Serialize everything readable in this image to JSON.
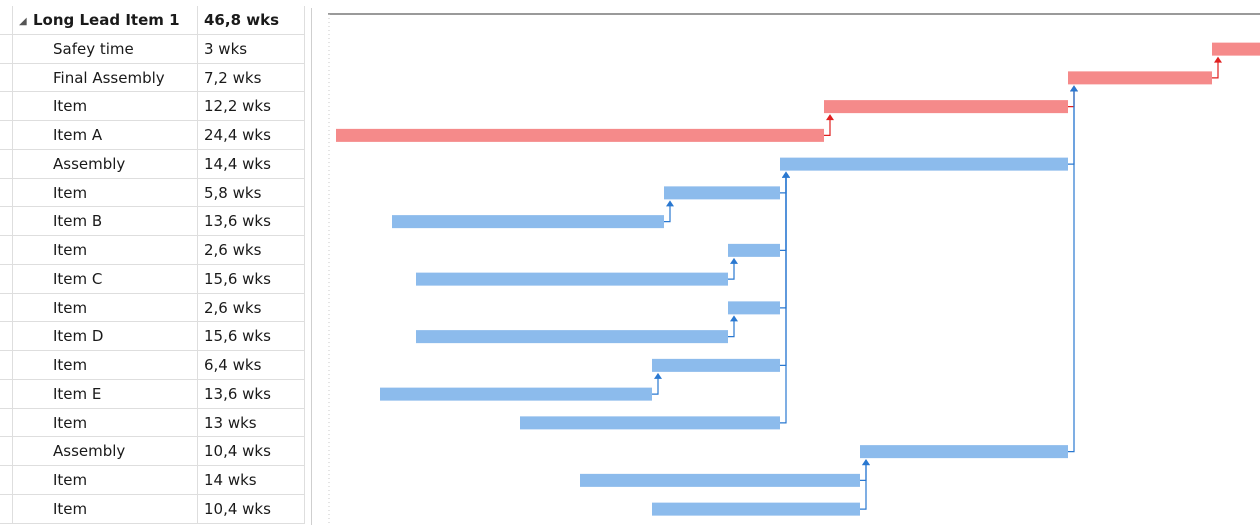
{
  "summary": {
    "name": "Long Lead Item 1",
    "duration": "46,8 wks"
  },
  "tasks": [
    {
      "name": "Safey time",
      "duration": "3 wks",
      "start": 44.5,
      "weeks": 3,
      "critical": true
    },
    {
      "name": "Final Assembly",
      "duration": "7,2 wks",
      "start": 37.3,
      "weeks": 7.2,
      "critical": true
    },
    {
      "name": "Item",
      "duration": "12,2 wks",
      "start": 25.1,
      "weeks": 12.2,
      "critical": true
    },
    {
      "name": "Item A",
      "duration": "24,4 wks",
      "start": 0.7,
      "weeks": 24.4,
      "critical": true
    },
    {
      "name": "Assembly",
      "duration": "14,4 wks",
      "start": 22.9,
      "weeks": 14.4,
      "critical": false
    },
    {
      "name": "Item",
      "duration": "5,8 wks",
      "start": 17.1,
      "weeks": 5.8,
      "critical": false
    },
    {
      "name": "Item B",
      "duration": "13,6 wks",
      "start": 3.5,
      "weeks": 13.6,
      "critical": false
    },
    {
      "name": "Item",
      "duration": "2,6 wks",
      "start": 20.3,
      "weeks": 2.6,
      "critical": false
    },
    {
      "name": "Item C",
      "duration": "15,6 wks",
      "start": 4.7,
      "weeks": 15.6,
      "critical": false
    },
    {
      "name": "Item",
      "duration": "2,6 wks",
      "start": 20.3,
      "weeks": 2.6,
      "critical": false
    },
    {
      "name": "Item D",
      "duration": "15,6 wks",
      "start": 4.7,
      "weeks": 15.6,
      "critical": false
    },
    {
      "name": "Item",
      "duration": "6,4 wks",
      "start": 16.5,
      "weeks": 6.4,
      "critical": false
    },
    {
      "name": "Item E",
      "duration": "13,6 wks",
      "start": 2.9,
      "weeks": 13.6,
      "critical": false
    },
    {
      "name": "Item",
      "duration": "13 wks",
      "start": 9.9,
      "weeks": 13,
      "critical": false
    },
    {
      "name": "Assembly",
      "duration": "10,4 wks",
      "start": 26.9,
      "weeks": 10.4,
      "critical": false
    },
    {
      "name": "Item",
      "duration": "14 wks",
      "start": 12.9,
      "weeks": 14,
      "critical": false
    },
    {
      "name": "Item",
      "duration": "10,4 wks",
      "start": 16.5,
      "weeks": 10.4,
      "critical": false
    }
  ],
  "links": [
    {
      "from": 1,
      "to": 0
    },
    {
      "from": 2,
      "to": 1
    },
    {
      "from": 3,
      "to": 2
    },
    {
      "from": 4,
      "to": 1
    },
    {
      "from": 5,
      "to": 4
    },
    {
      "from": 6,
      "to": 5
    },
    {
      "from": 7,
      "to": 4
    },
    {
      "from": 8,
      "to": 7
    },
    {
      "from": 9,
      "to": 4
    },
    {
      "from": 10,
      "to": 9
    },
    {
      "from": 11,
      "to": 4
    },
    {
      "from": 12,
      "to": 11
    },
    {
      "from": 13,
      "to": 4
    },
    {
      "from": 14,
      "to": 1
    },
    {
      "from": 15,
      "to": 14
    },
    {
      "from": 16,
      "to": 14
    }
  ],
  "colors": {
    "critical_bar": "#f58a8a",
    "normal_bar": "#8cbbec",
    "critical_link": "#e02020",
    "normal_link": "#2a78d0"
  }
}
